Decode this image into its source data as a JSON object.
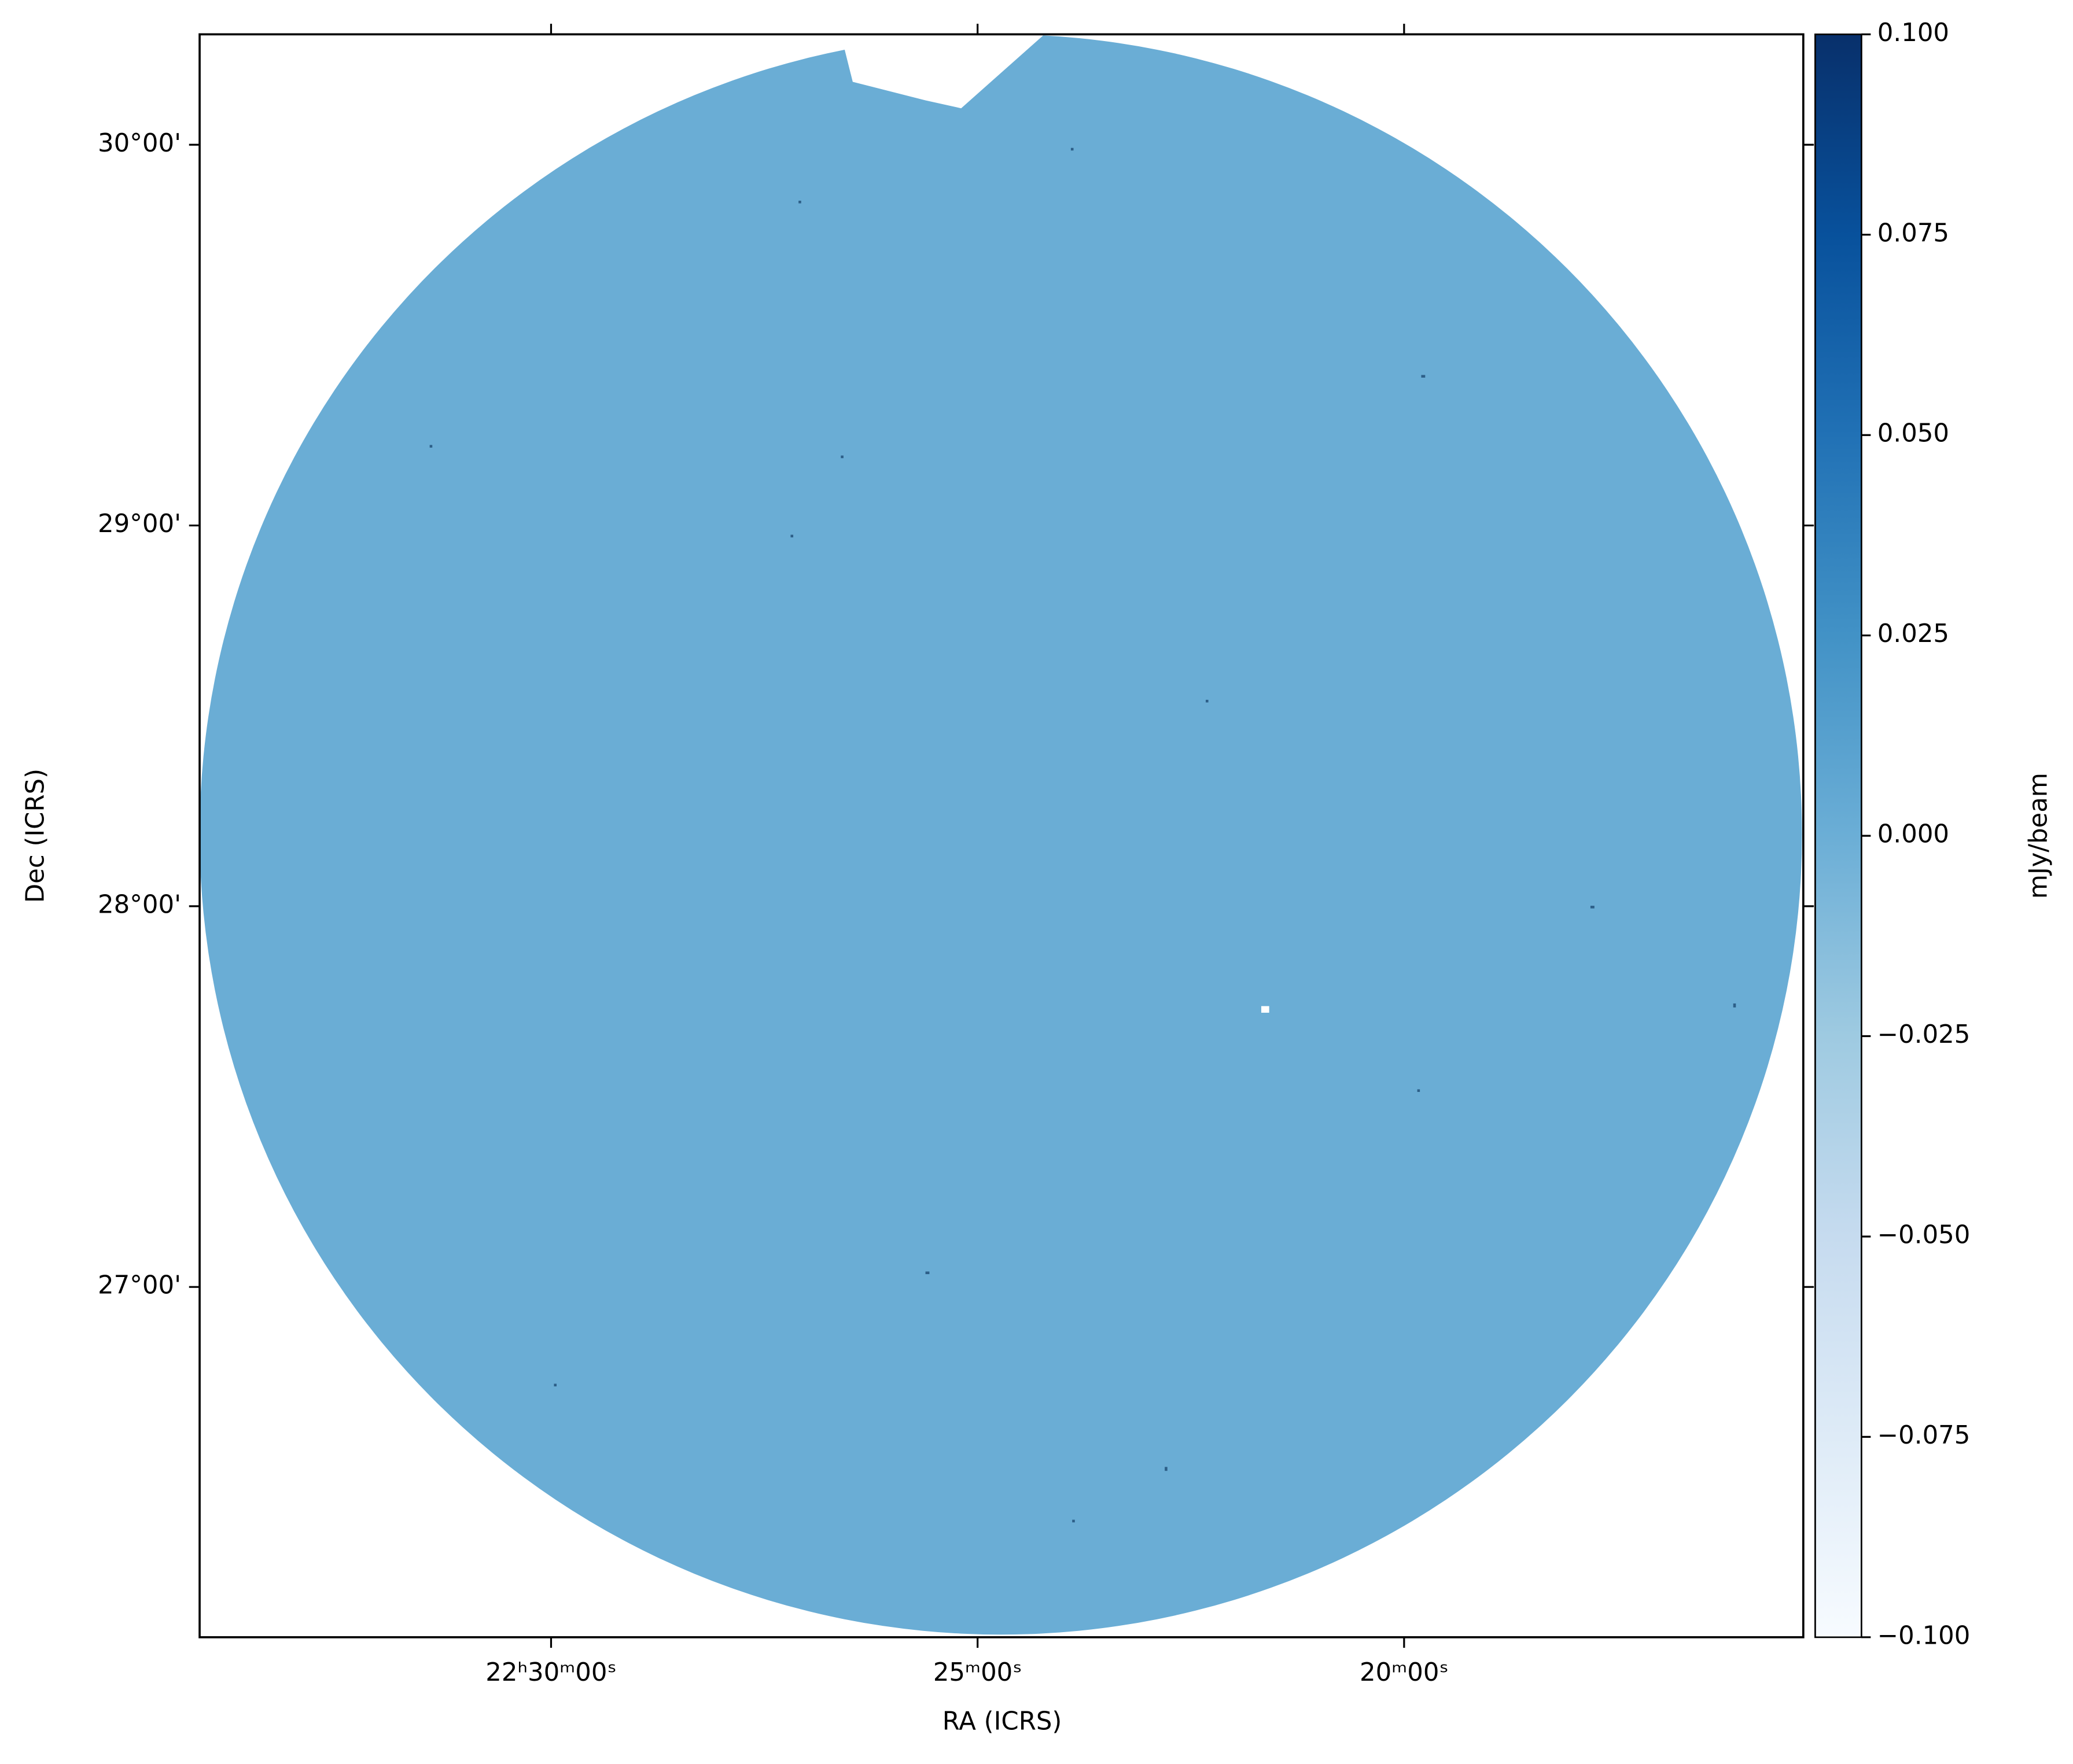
{
  "chart_data": {
    "type": "image",
    "xlabel": "RA (ICRS)",
    "ylabel": "Dec (ICRS)",
    "xlim": [
      338.53,
      333.83
    ],
    "xticks": [
      {
        "value": 337.5,
        "label": "22ʰ30ᵐ00ˢ"
      },
      {
        "value": 336.25,
        "label": "25ᵐ00ˢ"
      },
      {
        "value": 335.0,
        "label": "20ᵐ00ˢ"
      }
    ],
    "ylim": [
      26.08,
      30.29
    ],
    "yticks": [
      {
        "value": 30,
        "label": "30°00'"
      },
      {
        "value": 29,
        "label": "29°00'"
      },
      {
        "value": 28,
        "label": "28°00'"
      },
      {
        "value": 27,
        "label": "27°00'"
      }
    ],
    "colorbar": {
      "label": "mJy/beam",
      "lim": [
        -0.1,
        0.1
      ],
      "ticks": [
        {
          "value": 0.1,
          "label": "0.100"
        },
        {
          "value": 0.075,
          "label": "0.075"
        },
        {
          "value": 0.05,
          "label": "0.050"
        },
        {
          "value": 0.025,
          "label": "0.025"
        },
        {
          "value": 0,
          "label": "0.000"
        },
        {
          "value": -0.025,
          "label": "−0.025"
        },
        {
          "value": -0.05,
          "label": "−0.050"
        },
        {
          "value": -0.075,
          "label": "−0.075"
        },
        {
          "value": -0.1,
          "label": "−0.100"
        }
      ]
    }
  }
}
